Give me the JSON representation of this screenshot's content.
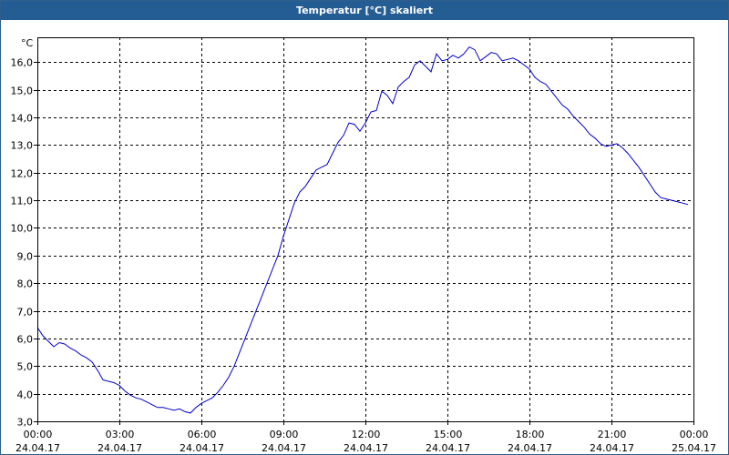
{
  "window": {
    "title": "Temperatur [°C] skaliert"
  },
  "colors": {
    "titlebar": "#245d94",
    "series": "#0000cc",
    "grid": "#000000"
  },
  "chart_data": {
    "type": "line",
    "title": "Temperatur [°C] skaliert",
    "ylabel": "°C",
    "xlabel": "",
    "ylim": [
      3.0,
      16.9
    ],
    "xlim": [
      0,
      24
    ],
    "grid": true,
    "yticks": [
      {
        "value": 3,
        "label": "3,0"
      },
      {
        "value": 4,
        "label": "4,0"
      },
      {
        "value": 5,
        "label": "5,0"
      },
      {
        "value": 6,
        "label": "6,0"
      },
      {
        "value": 7,
        "label": "7,0"
      },
      {
        "value": 8,
        "label": "8,0"
      },
      {
        "value": 9,
        "label": "9,0"
      },
      {
        "value": 10,
        "label": "10,0"
      },
      {
        "value": 11,
        "label": "11,0"
      },
      {
        "value": 12,
        "label": "12,0"
      },
      {
        "value": 13,
        "label": "13,0"
      },
      {
        "value": 14,
        "label": "14,0"
      },
      {
        "value": 15,
        "label": "15,0"
      },
      {
        "value": 16,
        "label": "16,0"
      }
    ],
    "xticks": [
      {
        "value": 0,
        "time": "00:00",
        "date": "24.04.17"
      },
      {
        "value": 3,
        "time": "03:00",
        "date": "24.04.17"
      },
      {
        "value": 6,
        "time": "06:00",
        "date": "24.04.17"
      },
      {
        "value": 9,
        "time": "09:00",
        "date": "24.04.17"
      },
      {
        "value": 12,
        "time": "12:00",
        "date": "24.04.17"
      },
      {
        "value": 15,
        "time": "15:00",
        "date": "24.04.17"
      },
      {
        "value": 18,
        "time": "18:00",
        "date": "24.04.17"
      },
      {
        "value": 21,
        "time": "21:00",
        "date": "24.04.17"
      },
      {
        "value": 24,
        "time": "00:00",
        "date": "25.04.17"
      }
    ],
    "series": [
      {
        "points": [
          [
            0.0,
            6.4
          ],
          [
            0.2,
            6.1
          ],
          [
            0.4,
            5.9
          ],
          [
            0.6,
            5.7
          ],
          [
            0.8,
            5.85
          ],
          [
            1.0,
            5.8
          ],
          [
            1.2,
            5.65
          ],
          [
            1.4,
            5.55
          ],
          [
            1.6,
            5.4
          ],
          [
            1.8,
            5.3
          ],
          [
            2.0,
            5.15
          ],
          [
            2.2,
            4.85
          ],
          [
            2.4,
            4.5
          ],
          [
            2.6,
            4.45
          ],
          [
            2.8,
            4.4
          ],
          [
            3.0,
            4.3
          ],
          [
            3.2,
            4.1
          ],
          [
            3.4,
            3.95
          ],
          [
            3.6,
            3.85
          ],
          [
            3.8,
            3.8
          ],
          [
            4.0,
            3.7
          ],
          [
            4.2,
            3.6
          ],
          [
            4.4,
            3.5
          ],
          [
            4.6,
            3.5
          ],
          [
            4.8,
            3.45
          ],
          [
            5.0,
            3.4
          ],
          [
            5.2,
            3.45
          ],
          [
            5.4,
            3.35
          ],
          [
            5.6,
            3.3
          ],
          [
            5.8,
            3.5
          ],
          [
            6.0,
            3.65
          ],
          [
            6.2,
            3.75
          ],
          [
            6.4,
            3.85
          ],
          [
            6.6,
            4.05
          ],
          [
            6.8,
            4.3
          ],
          [
            7.0,
            4.6
          ],
          [
            7.2,
            5.0
          ],
          [
            7.4,
            5.5
          ],
          [
            7.6,
            6.0
          ],
          [
            7.8,
            6.5
          ],
          [
            8.0,
            7.0
          ],
          [
            8.2,
            7.5
          ],
          [
            8.4,
            8.0
          ],
          [
            8.6,
            8.5
          ],
          [
            8.8,
            9.0
          ],
          [
            9.0,
            9.7
          ],
          [
            9.2,
            10.3
          ],
          [
            9.4,
            10.9
          ],
          [
            9.6,
            11.3
          ],
          [
            9.8,
            11.5
          ],
          [
            10.0,
            11.8
          ],
          [
            10.2,
            12.1
          ],
          [
            10.4,
            12.2
          ],
          [
            10.6,
            12.3
          ],
          [
            10.8,
            12.7
          ],
          [
            11.0,
            13.1
          ],
          [
            11.2,
            13.35
          ],
          [
            11.4,
            13.8
          ],
          [
            11.6,
            13.75
          ],
          [
            11.8,
            13.5
          ],
          [
            12.0,
            13.8
          ],
          [
            12.2,
            14.2
          ],
          [
            12.4,
            14.25
          ],
          [
            12.6,
            14.95
          ],
          [
            12.8,
            14.8
          ],
          [
            13.0,
            14.5
          ],
          [
            13.2,
            15.1
          ],
          [
            13.4,
            15.3
          ],
          [
            13.6,
            15.45
          ],
          [
            13.8,
            15.9
          ],
          [
            14.0,
            16.05
          ],
          [
            14.2,
            15.85
          ],
          [
            14.4,
            15.65
          ],
          [
            14.6,
            16.3
          ],
          [
            14.8,
            16.05
          ],
          [
            15.0,
            16.1
          ],
          [
            15.2,
            16.25
          ],
          [
            15.4,
            16.15
          ],
          [
            15.6,
            16.3
          ],
          [
            15.8,
            16.55
          ],
          [
            16.0,
            16.45
          ],
          [
            16.2,
            16.05
          ],
          [
            16.4,
            16.2
          ],
          [
            16.6,
            16.35
          ],
          [
            16.8,
            16.3
          ],
          [
            17.0,
            16.05
          ],
          [
            17.2,
            16.1
          ],
          [
            17.4,
            16.15
          ],
          [
            17.6,
            16.05
          ],
          [
            17.8,
            15.9
          ],
          [
            18.0,
            15.75
          ],
          [
            18.2,
            15.45
          ],
          [
            18.4,
            15.3
          ],
          [
            18.6,
            15.2
          ],
          [
            18.8,
            14.95
          ],
          [
            19.0,
            14.7
          ],
          [
            19.2,
            14.45
          ],
          [
            19.4,
            14.3
          ],
          [
            19.6,
            14.05
          ],
          [
            19.8,
            13.85
          ],
          [
            20.0,
            13.65
          ],
          [
            20.2,
            13.4
          ],
          [
            20.4,
            13.25
          ],
          [
            20.6,
            13.05
          ],
          [
            20.8,
            12.95
          ],
          [
            21.0,
            13.0
          ],
          [
            21.2,
            13.05
          ],
          [
            21.4,
            12.9
          ],
          [
            21.6,
            12.7
          ],
          [
            21.8,
            12.45
          ],
          [
            22.0,
            12.2
          ],
          [
            22.2,
            11.9
          ],
          [
            22.4,
            11.6
          ],
          [
            22.6,
            11.3
          ],
          [
            22.8,
            11.1
          ],
          [
            23.0,
            11.05
          ],
          [
            23.2,
            11.0
          ],
          [
            23.4,
            10.95
          ],
          [
            23.6,
            10.9
          ],
          [
            23.8,
            10.85
          ]
        ]
      }
    ]
  }
}
